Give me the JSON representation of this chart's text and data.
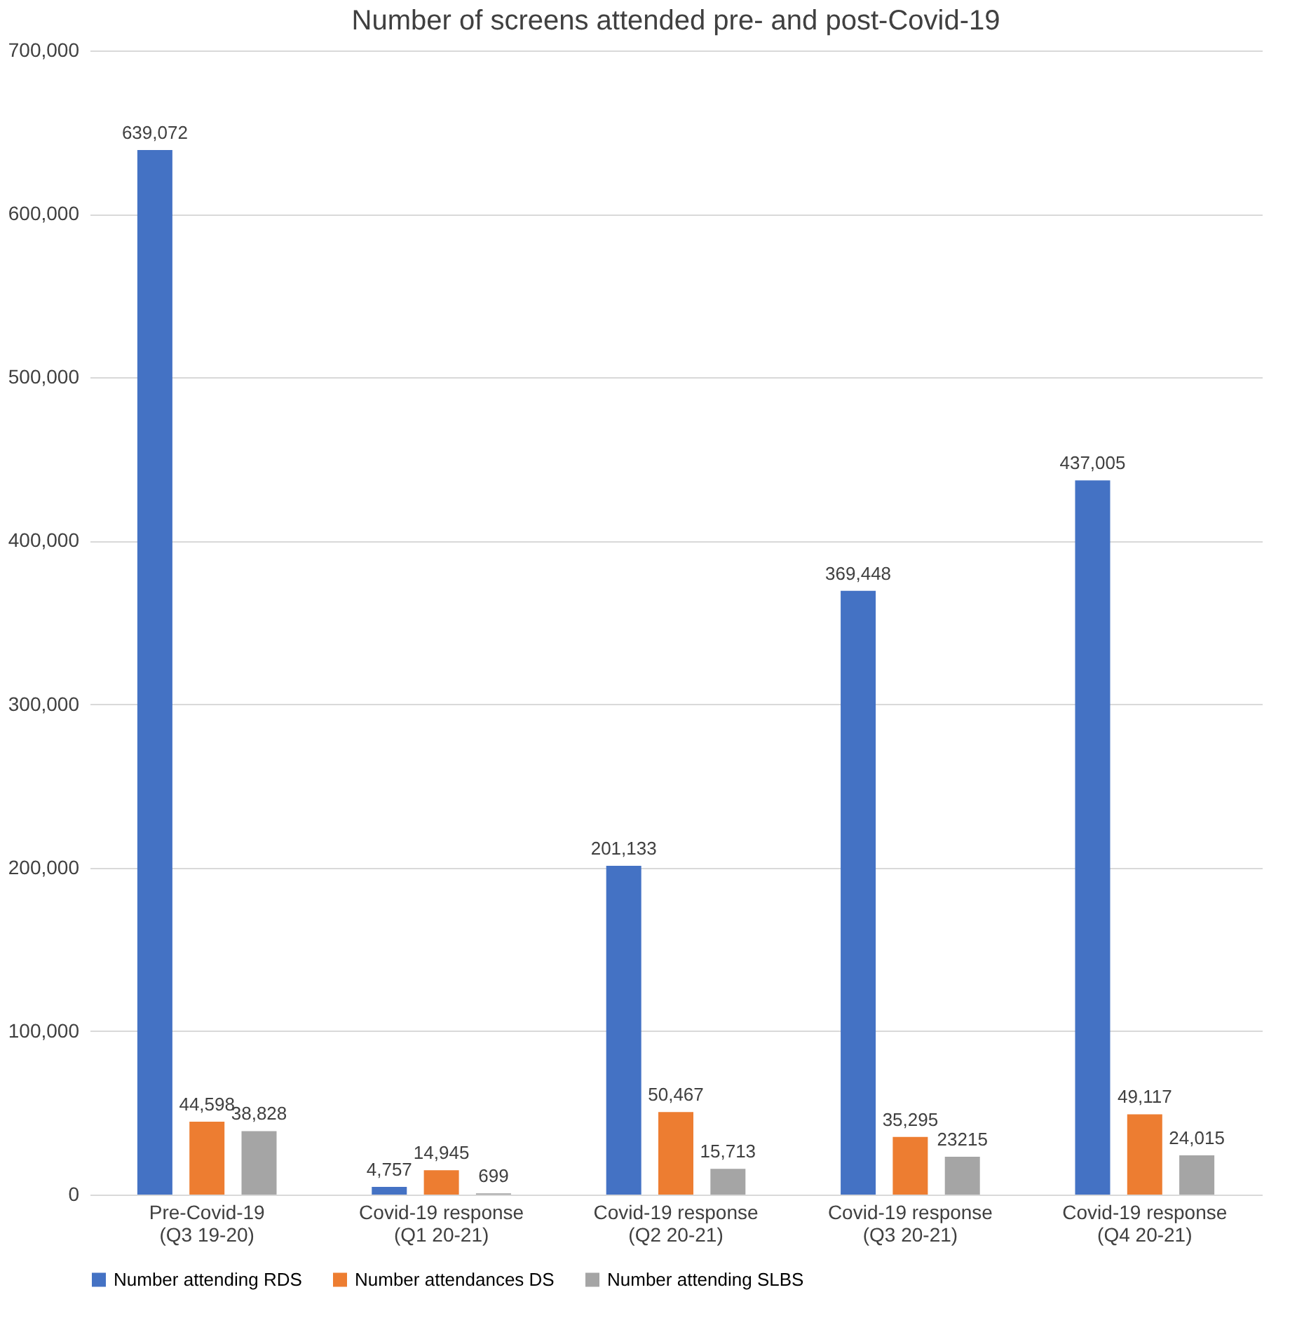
{
  "chart_data": {
    "type": "bar",
    "title": "Number of screens attended pre- and post-Covid-19",
    "categories": [
      "Pre-Covid-19 (Q3 19-20)",
      "Covid-19 response (Q1 20-21)",
      "Covid-19 response (Q2 20-21)",
      "Covid-19 response (Q3 20-21)",
      "Covid-19 response (Q4 20-21)"
    ],
    "series": [
      {
        "name": "Number attending RDS",
        "color": "#4472c4",
        "values": [
          639072,
          4757,
          201133,
          369448,
          437005
        ],
        "value_labels": [
          "639,072",
          "4,757",
          "201,133",
          "369,448",
          "437,005"
        ]
      },
      {
        "name": "Number attendances DS",
        "color": "#ed7d31",
        "values": [
          44598,
          14945,
          50467,
          35295,
          49117
        ],
        "value_labels": [
          "44,598",
          "14,945",
          "50,467",
          "35,295",
          "49,117"
        ]
      },
      {
        "name": "Number attending SLBS",
        "color": "#a5a5a5",
        "values": [
          38828,
          699,
          15713,
          23215,
          24015
        ],
        "value_labels": [
          "38,828",
          "699",
          "15,713",
          "23215",
          "24,015"
        ]
      }
    ],
    "ylim": [
      0,
      700000
    ],
    "yticks": [
      0,
      {
        "value": 100000,
        "label": "100,000"
      },
      {
        "value": 200000,
        "label": "200,000"
      },
      {
        "value": 300000,
        "label": "300,000"
      },
      {
        "value": 400000,
        "label": "400,000"
      },
      {
        "value": 500000,
        "label": "500,000"
      },
      {
        "value": 600000,
        "label": "600,000"
      },
      {
        "value": 700000,
        "label": "700,000"
      }
    ],
    "grid": "y",
    "legend": "bottom"
  }
}
